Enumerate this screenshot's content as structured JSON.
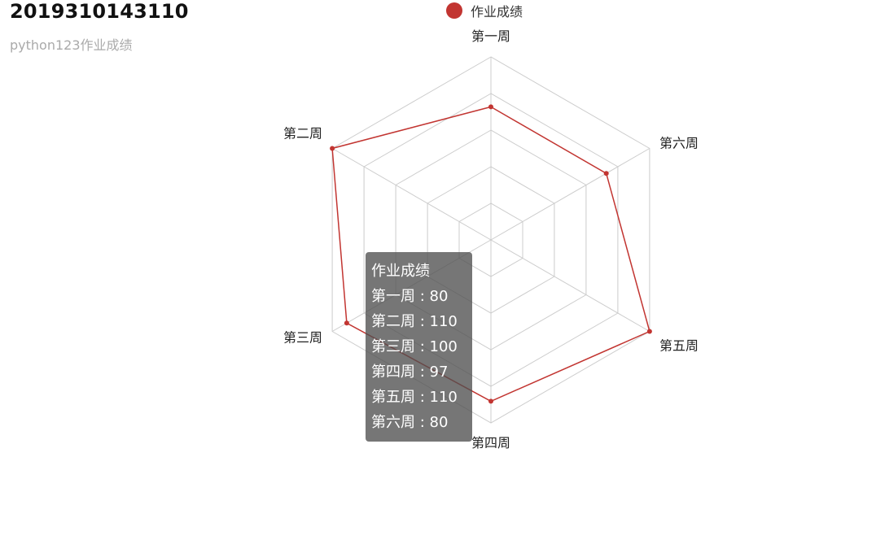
{
  "header": {
    "title": "2019310143110",
    "subtitle": "python123作业成绩"
  },
  "legend": {
    "label": "作业成绩",
    "color": "#c23531"
  },
  "chart_data": {
    "type": "radar",
    "indicators": [
      "第一周",
      "第二周",
      "第三周",
      "第四周",
      "第五周",
      "第六周"
    ],
    "max": 110,
    "split_number": 5,
    "series": [
      {
        "name": "作业成绩",
        "values": [
          80,
          110,
          100,
          97,
          110,
          80
        ]
      }
    ],
    "colors": {
      "series": "#c23531",
      "grid": "#cccccc"
    }
  },
  "tooltip": {
    "title": "作业成绩",
    "rows": [
      "第一周 : 80",
      "第二周 : 110",
      "第三周 : 100",
      "第四周 : 97",
      "第五周 : 110",
      "第六周 : 80"
    ]
  }
}
